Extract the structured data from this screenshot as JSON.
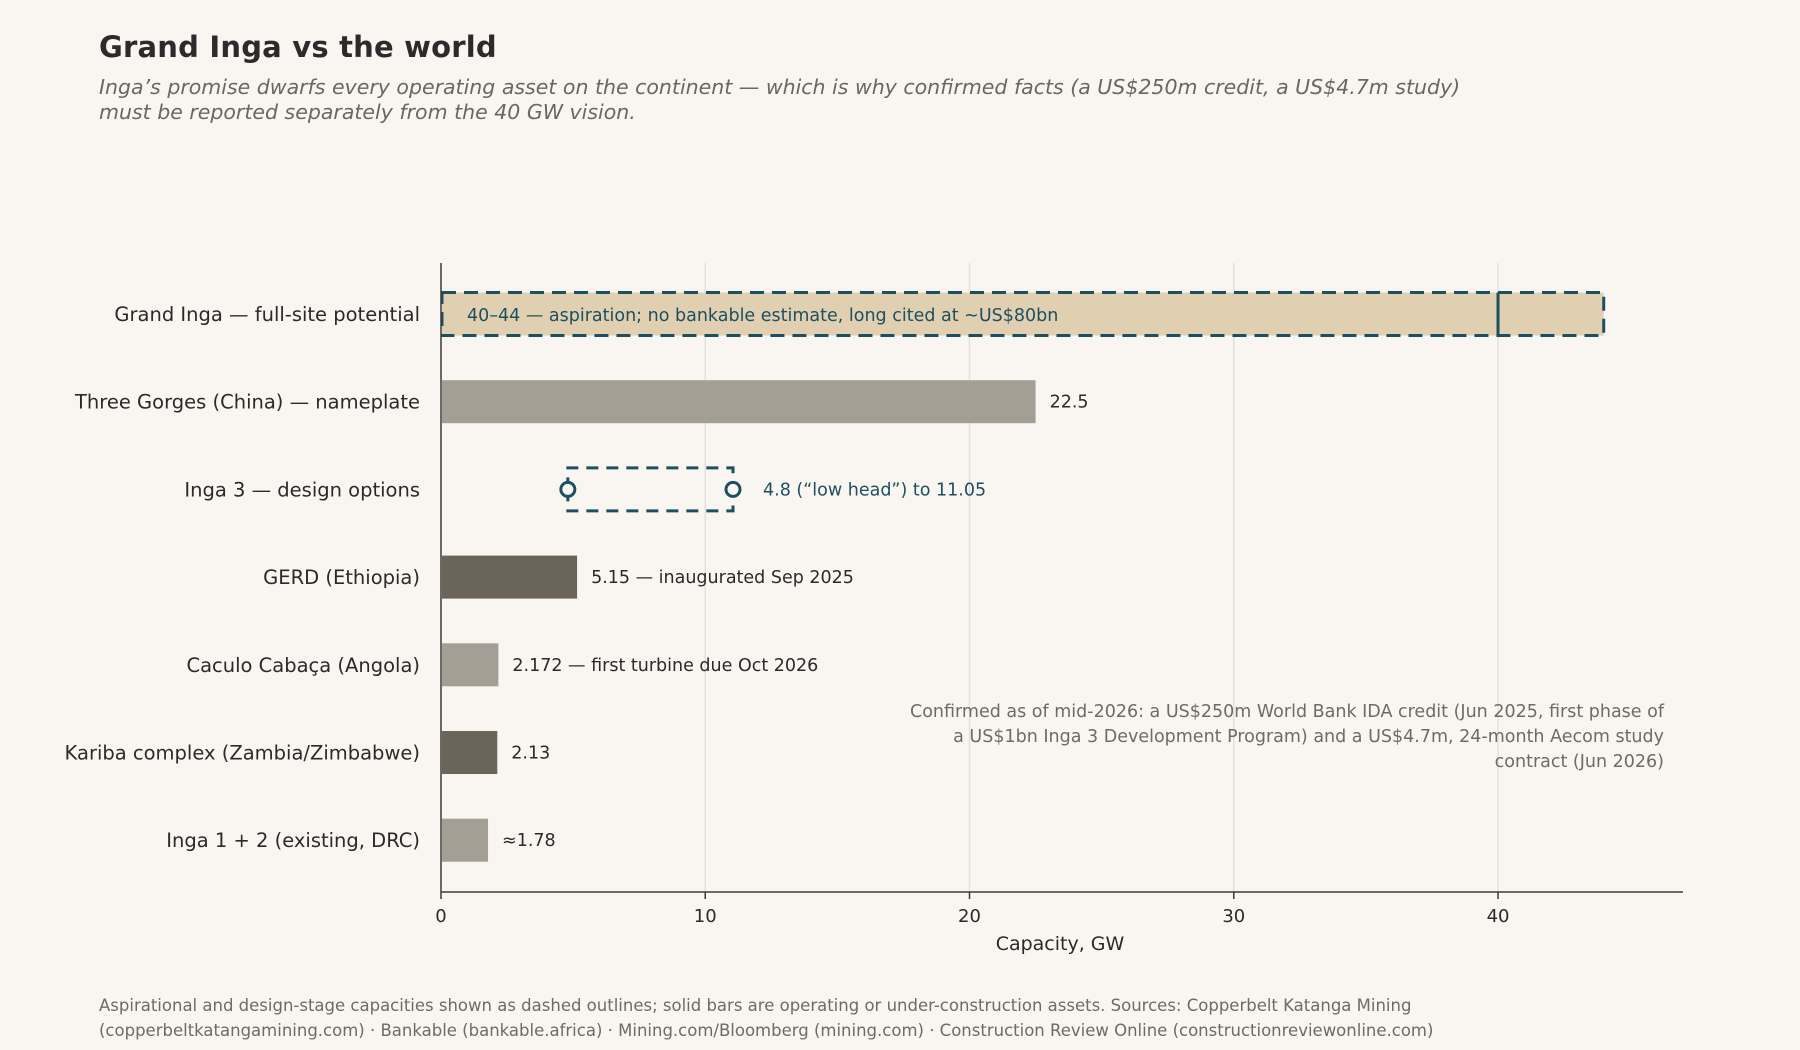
{
  "title": "Grand Inga vs the world",
  "subtitle": "Inga’s promise dwarfs every operating asset on the continent — which is why confirmed facts (a US$250m credit, a US$4.7m study) must be reported separately from the 40 GW vision.",
  "annotation": "Confirmed as of mid-2026: a US$250m World Bank IDA credit (Jun 2025, first phase of a US$1bn Inga 3 Development Program) and a US$4.7m, 24-month Aecom study contract (Jun 2026)",
  "footnote": "Aspirational and design-stage capacities shown as dashed outlines; solid bars are operating or under-construction assets. Sources: Copperbelt Katanga Mining (copperbeltkatangamining.com) · Bankable (bankable.africa) · Mining.com/Bloomberg (mining.com) · Construction Review Online (constructionreviewonline.com)",
  "colors": {
    "aspiration_fill": "#e0cfb1",
    "outline": "#1d4f5e",
    "gray_light": "#a39f94",
    "gray_dark": "#6b6458",
    "axis": "#3a3a3a",
    "grid": "#e4e1dc",
    "text": "#2a2a2a",
    "accent_text": "#1d4f5e"
  },
  "chart_data": {
    "type": "bar",
    "orientation": "horizontal",
    "xlabel": "Capacity, GW",
    "ylabel": "",
    "xlim": [
      0,
      47
    ],
    "xticks": [
      0,
      10,
      20,
      30,
      40
    ],
    "grid": true,
    "categories": [
      "Grand Inga — full-site potential",
      "Three Gorges (China) — nameplate",
      "Inga 3 — design options",
      "GERD (Ethiopia)",
      "Caculo Cabaça (Angola)",
      "Kariba complex (Zambia/Zimbabwe)",
      "Inga 1 + 2 (existing, DRC)"
    ],
    "bars": [
      {
        "label": "Grand Inga — full-site potential",
        "style": "aspiration",
        "low": 40,
        "high": 44,
        "annotation": "40–44 — aspiration; no bankable estimate, long cited at ~US$80bn"
      },
      {
        "label": "Three Gorges (China) — nameplate",
        "style": "solid-light",
        "value": 22.5,
        "annotation": "22.5"
      },
      {
        "label": "Inga 3 — design options",
        "style": "range",
        "low": 4.8,
        "high": 11.05,
        "annotation": "4.8 (“low head”) to 11.05"
      },
      {
        "label": "GERD (Ethiopia)",
        "style": "solid-dark",
        "value": 5.15,
        "annotation": "5.15 — inaugurated Sep 2025"
      },
      {
        "label": "Caculo Cabaça (Angola)",
        "style": "solid-light",
        "value": 2.172,
        "annotation": "2.172 — first turbine due Oct 2026"
      },
      {
        "label": "Kariba complex (Zambia/Zimbabwe)",
        "style": "solid-dark",
        "value": 2.13,
        "annotation": "2.13"
      },
      {
        "label": "Inga 1 + 2 (existing, DRC)",
        "style": "solid-light",
        "value": 1.78,
        "annotation": "≈1.78"
      }
    ]
  }
}
